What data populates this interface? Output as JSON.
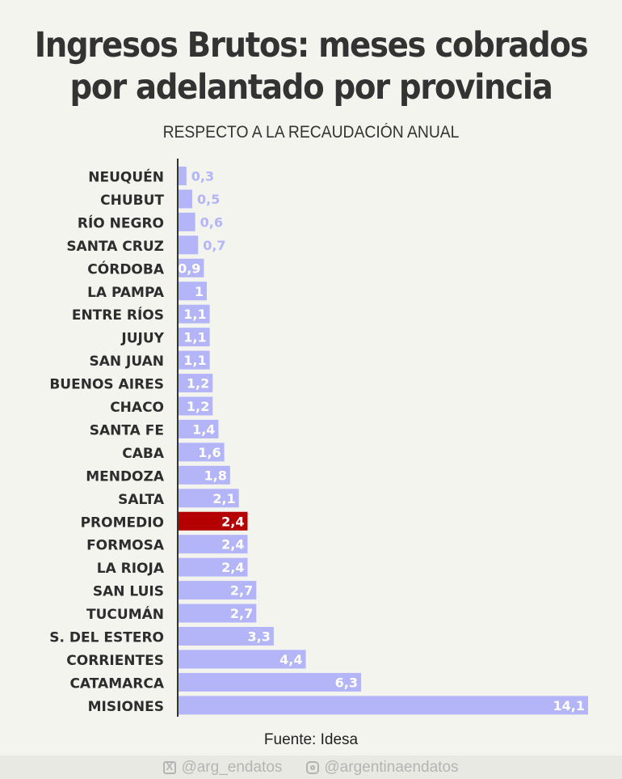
{
  "header": {
    "title_line1": "Ingresos Brutos: meses cobrados",
    "title_line2": "por adelantado por provincia",
    "subtitle": "RESPECTO A LA RECAUDACIÓN ANUAL"
  },
  "chart_data": {
    "type": "bar",
    "orientation": "horizontal",
    "categories": [
      "NEUQUÉN",
      "CHUBUT",
      "RÍO NEGRO",
      "SANTA CRUZ",
      "CÓRDOBA",
      "LA PAMPA",
      "ENTRE RÍOS",
      "JUJUY",
      "SAN JUAN",
      "BUENOS AIRES",
      "CHACO",
      "SANTA FE",
      "CABA",
      "MENDOZA",
      "SALTA",
      "PROMEDIO",
      "FORMOSA",
      "LA RIOJA",
      "SAN LUIS",
      "TUCUMÁN",
      "S. DEL ESTERO",
      "CORRIENTES",
      "CATAMARCA",
      "MISIONES"
    ],
    "values": [
      0.3,
      0.5,
      0.6,
      0.7,
      0.9,
      1,
      1.1,
      1.1,
      1.1,
      1.2,
      1.2,
      1.4,
      1.6,
      1.8,
      2.1,
      2.4,
      2.4,
      2.4,
      2.7,
      2.7,
      3.3,
      4.4,
      6.3,
      14.1
    ],
    "labels": [
      "0,3",
      "0,5",
      "0,6",
      "0,7",
      "0,9",
      "1",
      "1,1",
      "1,1",
      "1,1",
      "1,2",
      "1,2",
      "1,4",
      "1,6",
      "1,8",
      "2,1",
      "2,4",
      "2,4",
      "2,4",
      "2,7",
      "2,7",
      "3,3",
      "4,4",
      "6,3",
      "14,1"
    ],
    "highlight": "PROMEDIO",
    "xlim": [
      0,
      14.1
    ],
    "grid": false,
    "colors": {
      "bar": "#b3b5f8",
      "highlight": "#b40000",
      "label_outside": "#b3b5f8",
      "label_inside": "#ffffff",
      "axis": "#333333",
      "category_text": "#2d2d2d"
    }
  },
  "source": "Fuente: Idesa",
  "footer": {
    "x_icon": "x-logo-icon",
    "x_handle": "@arg_endatos",
    "ig_icon": "instagram-icon",
    "ig_handle": "@argentinaendatos"
  }
}
